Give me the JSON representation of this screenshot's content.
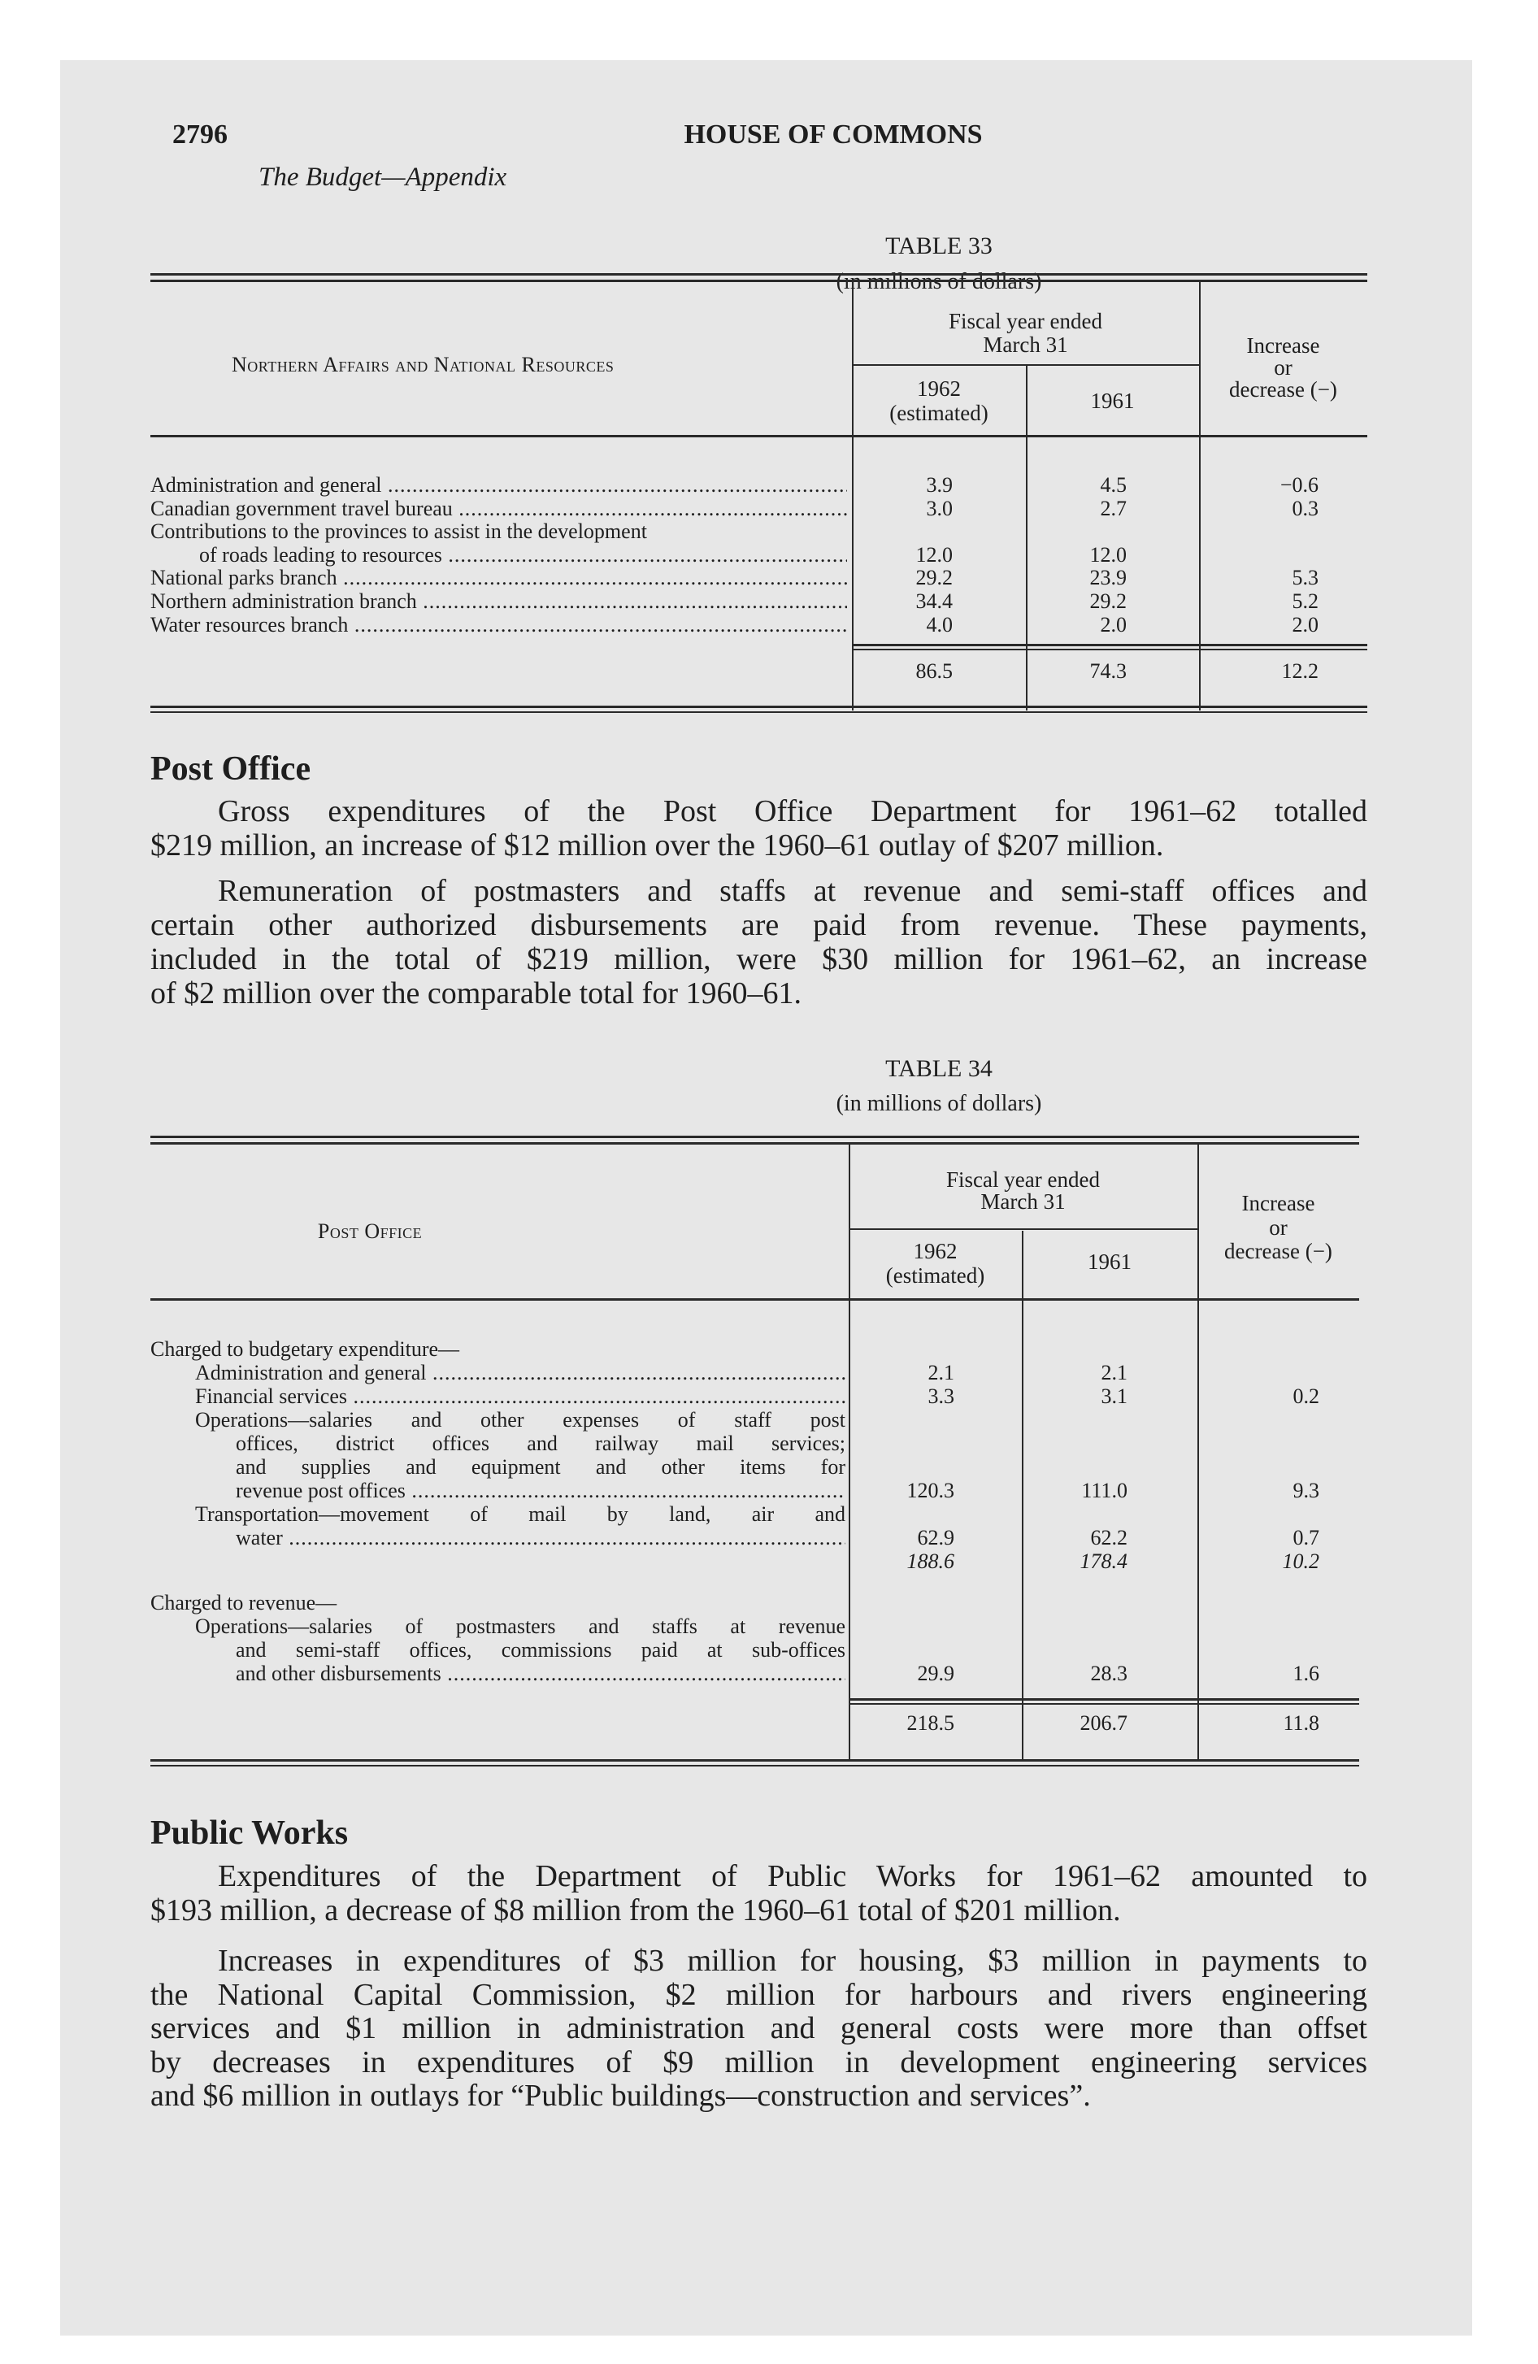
{
  "page": {
    "number": "2796",
    "running_head": "HOUSE OF COMMONS",
    "section": "The Budget—Appendix"
  },
  "table33": {
    "title": "TABLE 33",
    "subtitle": "(in millions of dollars)",
    "label_header": "Northern Affairs and National Resources",
    "fiscal_header": [
      "Fiscal year ended",
      "March 31"
    ],
    "col1_header": [
      "1962",
      "(estimated)"
    ],
    "col2_header": "1961",
    "col3_header": [
      "Increase",
      "or",
      "decrease (−)"
    ],
    "rows": [
      {
        "label": [
          "Administration and general"
        ],
        "v": [
          "3.9",
          "4.5",
          "−0.6"
        ]
      },
      {
        "label": [
          "Canadian government travel bureau"
        ],
        "v": [
          "3.0",
          "2.7",
          "0.3"
        ]
      },
      {
        "label": [
          "Contributions to the provinces to assist in the development",
          "of roads leading to resources"
        ],
        "v": [
          "12.0",
          "12.0",
          ""
        ]
      },
      {
        "label": [
          "National parks branch"
        ],
        "v": [
          "29.2",
          "23.9",
          "5.3"
        ]
      },
      {
        "label": [
          "Northern administration branch"
        ],
        "v": [
          "34.4",
          "29.2",
          "5.2"
        ]
      },
      {
        "label": [
          "Water resources branch"
        ],
        "v": [
          "4.0",
          "2.0",
          "2.0"
        ]
      }
    ],
    "total": [
      "86.5",
      "74.3",
      "12.2"
    ]
  },
  "post_office": {
    "heading": "Post Office",
    "paragraphs": [
      [
        "Gross expenditures of the Post Office Department for 1961–62 totalled",
        "$219 million, an increase of $12 million over the 1960–61 outlay of $207 million."
      ],
      [
        "Remuneration of postmasters and staffs at revenue and semi-staff offices and",
        "certain other authorized disbursements are paid from revenue. These payments,",
        "included in the total of $219 million, were $30 million for 1961–62, an increase",
        "of $2 million over the comparable total for 1960–61."
      ]
    ]
  },
  "table34": {
    "title": "TABLE 34",
    "subtitle": "(in millions of dollars)",
    "label_header": "Post Office",
    "fiscal_header": [
      "Fiscal year ended",
      "March 31"
    ],
    "col1_header": [
      "1962",
      "(estimated)"
    ],
    "col2_header": "1961",
    "col3_header": [
      "Increase",
      "or",
      "decrease (−)"
    ],
    "rows": [
      {
        "label": [
          "Charged to budgetary expenditure—"
        ],
        "group": true,
        "v": [
          "",
          "",
          ""
        ]
      },
      {
        "label": [
          "Administration and general"
        ],
        "v": [
          "2.1",
          "2.1",
          ""
        ]
      },
      {
        "label": [
          "Financial services"
        ],
        "v": [
          "3.3",
          "3.1",
          "0.2"
        ]
      },
      {
        "label": [
          "Operations—salaries and other expenses of staff post",
          "offices, district offices and railway mail services;",
          "and supplies and equipment and other items for",
          "revenue post offices"
        ],
        "v": [
          "120.3",
          "111.0",
          "9.3"
        ]
      },
      {
        "label": [
          "Transportation—movement of mail by land, air and",
          "water"
        ],
        "v": [
          "62.9",
          "62.2",
          "0.7"
        ]
      },
      {
        "label": [],
        "subtotal": true,
        "v": [
          "188.6",
          "178.4",
          "10.2"
        ]
      },
      {
        "label": [
          "Charged to revenue—"
        ],
        "group": true,
        "gap": true,
        "v": [
          "",
          "",
          ""
        ]
      },
      {
        "label": [
          "Operations—salaries of postmasters and staffs at revenue",
          "and semi-staff offices, commissions paid at sub-offices",
          "and other disbursements"
        ],
        "v": [
          "29.9",
          "28.3",
          "1.6"
        ]
      }
    ],
    "total": [
      "218.5",
      "206.7",
      "11.8"
    ]
  },
  "public_works": {
    "heading": "Public Works",
    "paragraphs": [
      [
        "Expenditures of the Department of Public Works for 1961–62 amounted to",
        "$193 million, a decrease of $8 million from the 1960–61 total of $201 million."
      ],
      [
        "Increases in expenditures of $3 million for housing, $3 million in payments to",
        "the National Capital Commission, $2 million for harbours and rivers engineering",
        "services and $1 million in administration and general costs were more than offset",
        "by decreases in expenditures of $9 million in development engineering services",
        "and $6 million in outlays for “Public buildings—construction and services”."
      ]
    ]
  }
}
